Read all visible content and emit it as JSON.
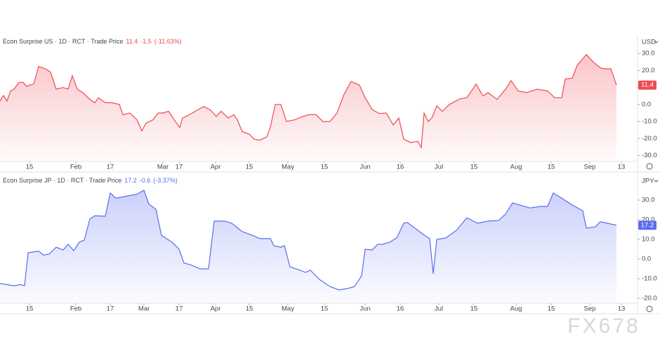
{
  "chart_data": [
    {
      "type": "area",
      "title": "Econ Surprise US · 1D · RCT · Trade Price",
      "change": -1.5,
      "change_percent": "(-11.63%)",
      "unit": "USD",
      "color": "#ef4a52",
      "x": [
        0,
        1,
        2,
        3,
        4,
        5.4,
        6.6,
        7.6,
        8.4,
        9.6,
        11,
        13,
        14.4,
        16,
        18,
        19.4,
        20.6,
        22,
        23.6,
        25.6,
        27,
        28,
        30,
        32,
        34,
        35,
        37,
        39,
        40.4,
        41.6,
        43.6,
        45,
        46.4,
        48,
        49.6,
        51.2,
        52,
        54,
        55.6,
        58,
        60,
        61.6,
        63,
        65,
        66.6,
        67.6,
        69,
        71,
        72.4,
        74,
        76,
        77,
        78.4,
        80,
        81.6,
        84,
        86,
        88,
        90,
        92,
        94,
        96,
        98,
        100,
        102.4,
        104,
        106,
        108,
        110,
        112,
        113.6,
        115,
        117,
        119,
        120,
        120.8,
        122,
        123,
        124.4,
        126,
        128,
        131,
        133,
        135.6,
        137.6,
        139,
        141.6,
        144,
        145.6,
        147.6,
        150,
        153,
        156,
        158,
        160,
        161,
        163,
        164.4,
        167,
        169,
        171,
        172,
        174,
        175.6
      ],
      "values": [
        2,
        5.3,
        2,
        8,
        9,
        13,
        13,
        10.6,
        11.4,
        12,
        22.4,
        21,
        19,
        9,
        10,
        9,
        17,
        9,
        7,
        3,
        1,
        4,
        1,
        1,
        0,
        -6,
        -5,
        -9,
        -15.5,
        -11,
        -9,
        -5,
        -5,
        -4,
        -9,
        -13.5,
        -8,
        -6,
        -4,
        -1.2,
        -3.3,
        -7,
        -4,
        -8,
        -6,
        -9,
        -16,
        -17.5,
        -20.4,
        -21,
        -19,
        -13.5,
        0,
        0,
        -10,
        -9,
        -7.3,
        -6,
        -6,
        -10,
        -10,
        -5,
        6,
        13.5,
        11.4,
        4,
        -3,
        -5.3,
        -5,
        -12,
        -8,
        -20.4,
        -22.4,
        -21.6,
        -25.3,
        -5,
        -10,
        -8,
        -0.8,
        -4,
        0,
        3.3,
        4,
        12,
        5,
        7,
        3,
        9,
        14,
        8,
        7,
        9,
        8,
        4,
        4,
        15,
        15.5,
        23,
        29.4,
        25,
        21.6,
        21,
        21,
        11.4
      ],
      "xlim": [
        0,
        181
      ],
      "ylim": [
        -33.5,
        40.8
      ],
      "xticks": [
        {
          "value": 8.4,
          "label": "15"
        },
        {
          "value": 21.6,
          "label": "Feb"
        },
        {
          "value": 31.4,
          "label": "17"
        },
        {
          "value": 46.4,
          "label": "Mar"
        },
        {
          "value": 51,
          "label": "17"
        },
        {
          "value": 61.4,
          "label": "Apr"
        },
        {
          "value": 71,
          "label": "15"
        },
        {
          "value": 82,
          "label": "May"
        },
        {
          "value": 92.4,
          "label": "15"
        },
        {
          "value": 104,
          "label": "Jun"
        },
        {
          "value": 114,
          "label": "16"
        },
        {
          "value": 125,
          "label": "Jul"
        },
        {
          "value": 135,
          "label": "15"
        },
        {
          "value": 147,
          "label": "Aug"
        },
        {
          "value": 157,
          "label": "15"
        },
        {
          "value": 168,
          "label": "Sep"
        },
        {
          "value": 177,
          "label": "13"
        }
      ],
      "yticks": [
        {
          "value": 30,
          "label": "30.0"
        },
        {
          "value": 20,
          "label": "20.0"
        },
        {
          "value": 10,
          "label": "10.0"
        },
        {
          "value": 0,
          "label": "0.0"
        },
        {
          "value": -10,
          "label": "-10.0"
        },
        {
          "value": -20,
          "label": "-20.0"
        },
        {
          "value": -30,
          "label": "-30.0"
        }
      ]
    },
    {
      "type": "area",
      "title": "Econ Surprise JP · 1D · RCT · Trade Price",
      "change": -0.6,
      "change_percent": "(-3.37%)",
      "unit": "JPY",
      "color": "#5a6cf0",
      "x": [
        0,
        2,
        4,
        6,
        7,
        8,
        11,
        12.4,
        14,
        16,
        18,
        19.4,
        21,
        22.6,
        24,
        25.6,
        27,
        30,
        31.4,
        33,
        36,
        39,
        41,
        42.4,
        44.4,
        46,
        49,
        51,
        52.4,
        54.4,
        57,
        59.4,
        61,
        64,
        66,
        69,
        72,
        74,
        77,
        78,
        80,
        81,
        82.6,
        85,
        87,
        88.4,
        91,
        94,
        96.6,
        99,
        101,
        103,
        104,
        106,
        107.6,
        109,
        111,
        113,
        115,
        116,
        119,
        121,
        122.4,
        123.4,
        124.4,
        127,
        130,
        133,
        136,
        139,
        142,
        144,
        146,
        149,
        151,
        154,
        156,
        157.6,
        160,
        163,
        166,
        167,
        169.6,
        171,
        173,
        175.6
      ],
      "values": [
        -12.5,
        -13,
        -13.6,
        -13,
        -13.6,
        3.2,
        4,
        2,
        2.5,
        6,
        4.6,
        7.5,
        4.3,
        8.6,
        9.6,
        20.4,
        22,
        21.8,
        33.6,
        31,
        32,
        33,
        35,
        28,
        25.4,
        12,
        8.6,
        5,
        -2,
        -3,
        -5,
        -5,
        19.3,
        19.3,
        18.2,
        14,
        12,
        10.4,
        10.4,
        6.8,
        6,
        6.8,
        -4,
        -5.4,
        -6.8,
        -5.7,
        -10.4,
        -14,
        -15.7,
        -15,
        -14,
        -8.6,
        5,
        4.6,
        7.5,
        7.5,
        8.6,
        10.7,
        18.2,
        18.6,
        14.6,
        12,
        10.4,
        -7.5,
        10,
        10.7,
        14.6,
        21,
        18.2,
        19.3,
        19.6,
        22.9,
        28.6,
        27,
        26,
        26.8,
        26.8,
        33.6,
        31,
        27.5,
        24.6,
        15.7,
        16.4,
        19,
        18.2,
        17.2
      ],
      "xlim": [
        0,
        181
      ],
      "ylim": [
        -22.5,
        42.5
      ],
      "xticks": [
        {
          "value": 8.4,
          "label": "15"
        },
        {
          "value": 21.6,
          "label": "Feb"
        },
        {
          "value": 31.4,
          "label": "17"
        },
        {
          "value": 41,
          "label": "Mar"
        },
        {
          "value": 51,
          "label": "17"
        },
        {
          "value": 61.4,
          "label": "Apr"
        },
        {
          "value": 71,
          "label": "15"
        },
        {
          "value": 82,
          "label": "May"
        },
        {
          "value": 92.4,
          "label": "15"
        },
        {
          "value": 104,
          "label": "Jun"
        },
        {
          "value": 114,
          "label": "16"
        },
        {
          "value": 125,
          "label": "Jul"
        },
        {
          "value": 135,
          "label": "15"
        },
        {
          "value": 147,
          "label": "Aug"
        },
        {
          "value": 157,
          "label": "15"
        },
        {
          "value": 168,
          "label": "Sep"
        },
        {
          "value": 177,
          "label": "13"
        }
      ],
      "yticks": [
        {
          "value": 30,
          "label": "30.0"
        },
        {
          "value": 20,
          "label": "20.0"
        },
        {
          "value": 10,
          "label": "10.0"
        },
        {
          "value": 0,
          "label": "0.0"
        },
        {
          "value": -10,
          "label": "-10.0"
        },
        {
          "value": -20,
          "label": "-20.0"
        }
      ]
    }
  ],
  "watermark": "FX678"
}
